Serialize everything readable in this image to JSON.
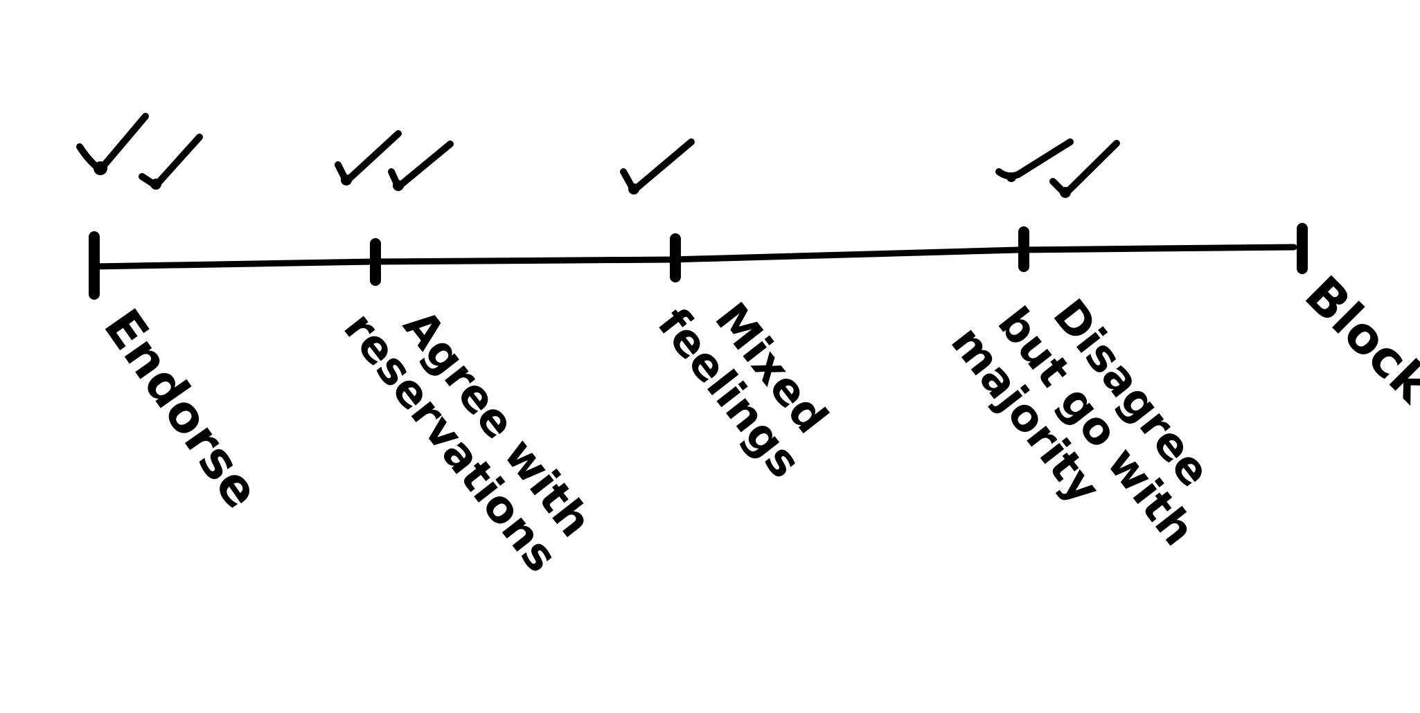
{
  "scale": {
    "points": [
      {
        "lines": [
          "Endorse"
        ],
        "votes": 2
      },
      {
        "lines": [
          "Agree with",
          "reservations"
        ],
        "votes": 2
      },
      {
        "lines": [
          "Mixed",
          "feelings"
        ],
        "votes": 1
      },
      {
        "lines": [
          "Disagree",
          "but go with",
          "majority"
        ],
        "votes": 2
      },
      {
        "lines": [
          "Block"
        ],
        "votes": 0
      }
    ]
  }
}
